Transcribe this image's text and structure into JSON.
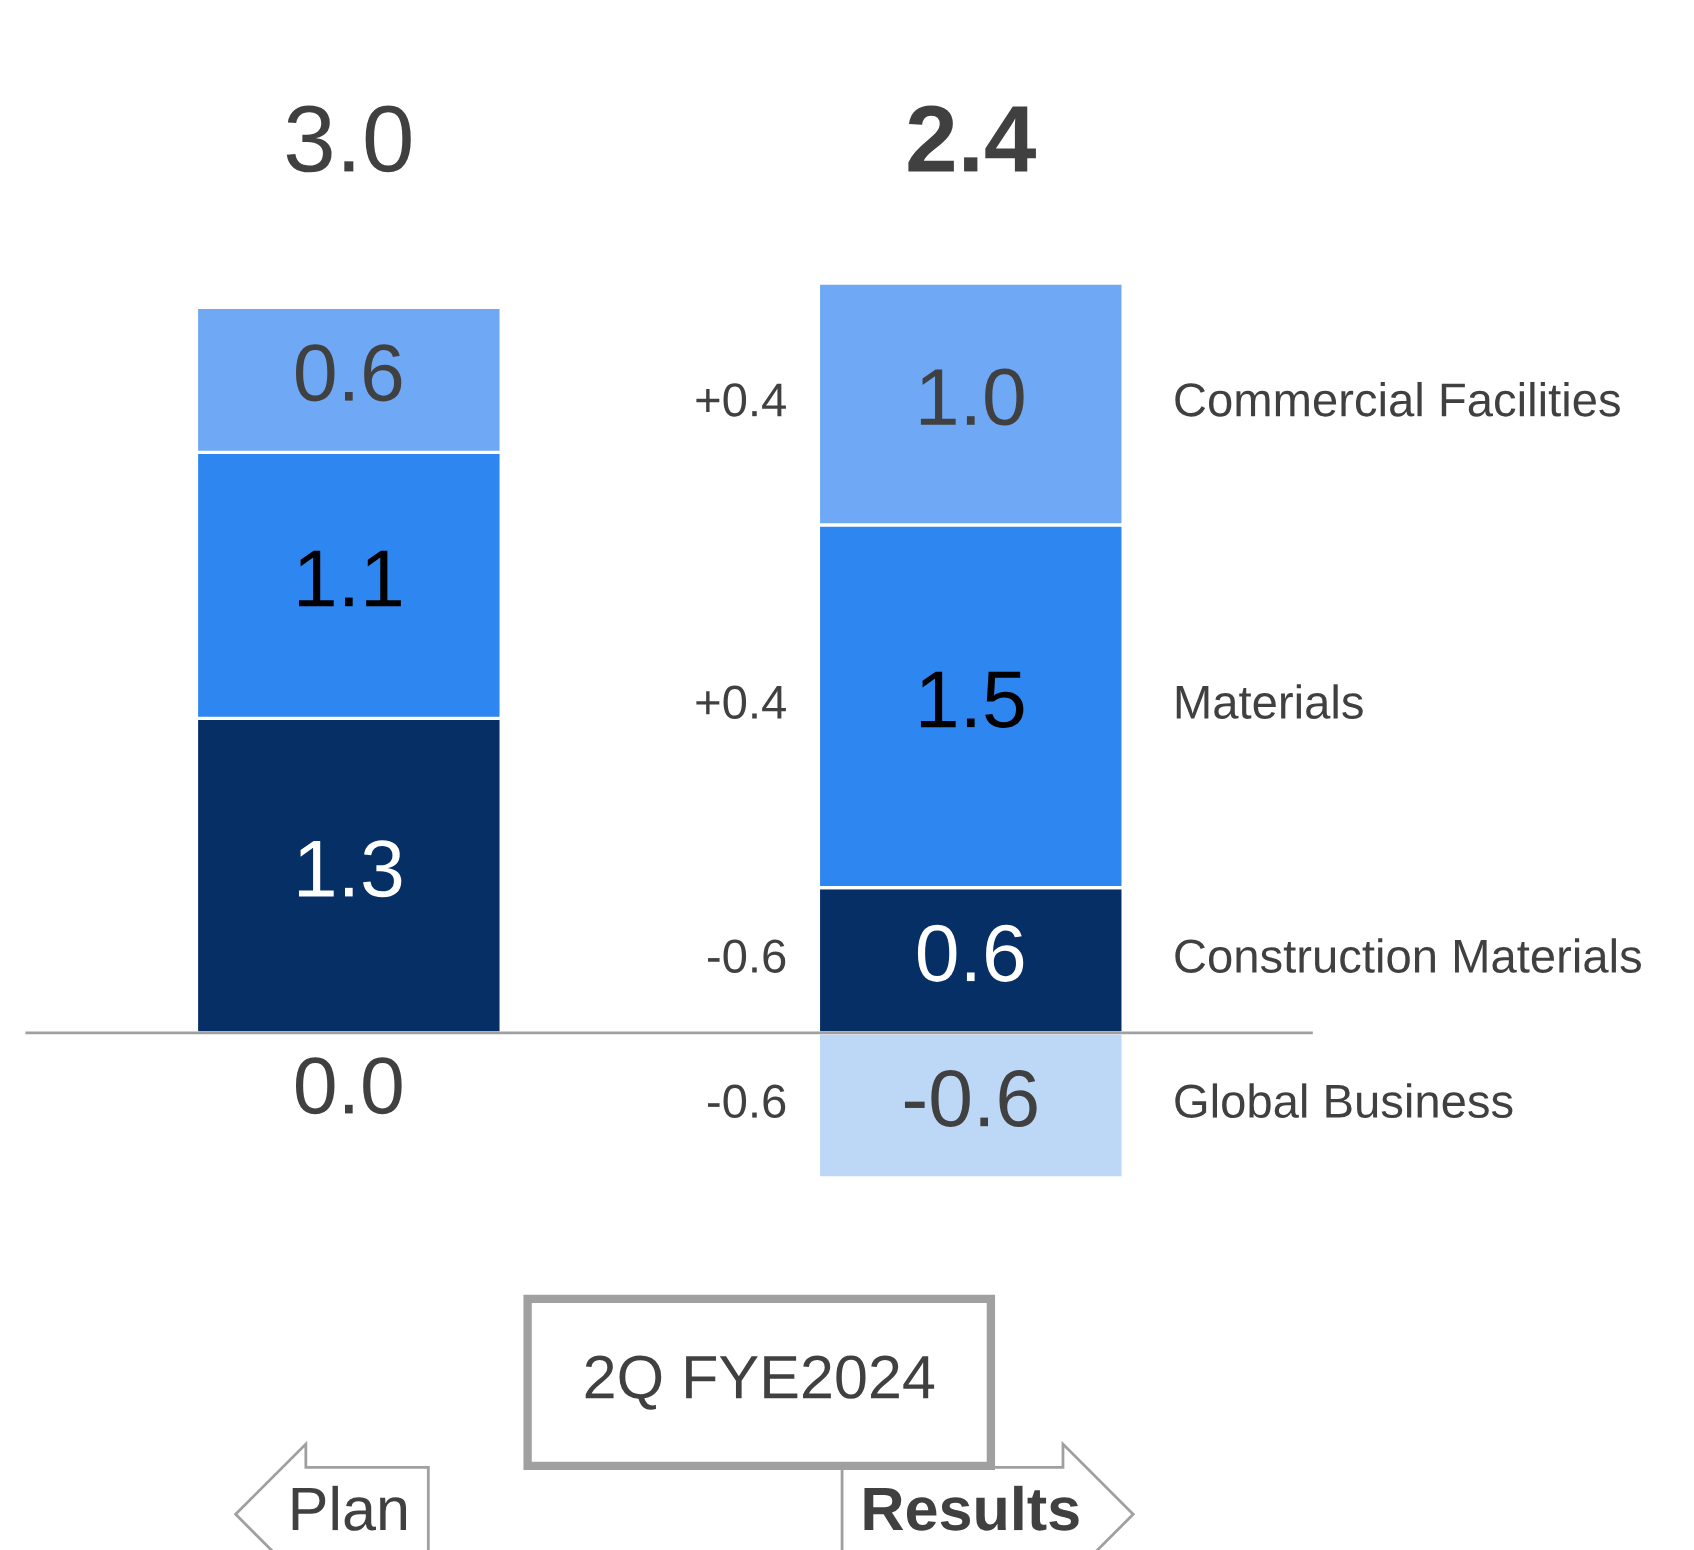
{
  "chart_data": {
    "type": "bar",
    "stacked": true,
    "categories": [
      "Plan",
      "Results"
    ],
    "xlabel": "2Q FYE2024",
    "series": [
      {
        "name": "Global Business",
        "color": "#bdd7f7",
        "values": [
          0.0,
          -0.6
        ],
        "value_labels": [
          null,
          "-0.6"
        ]
      },
      {
        "name": "Construction Materials",
        "color": "#062f66",
        "values": [
          1.3,
          0.6
        ],
        "value_labels": [
          "1.3",
          "0.6"
        ]
      },
      {
        "name": "Materials",
        "color": "#2e86f0",
        "values": [
          1.1,
          1.5
        ],
        "value_labels": [
          "1.1",
          "1.5"
        ]
      },
      {
        "name": "Commercial Facilities",
        "color": "#6fa8f5",
        "values": [
          0.6,
          1.0
        ],
        "value_labels": [
          "0.6",
          "1.0"
        ]
      }
    ],
    "totals": [
      "3.0",
      "2.4"
    ],
    "annotations": [
      "+0.4",
      "+0.4",
      "-0.6",
      "-0.6",
      {
        "text": "0.0",
        "x": "Plan",
        "y": 0
      }
    ]
  }
}
